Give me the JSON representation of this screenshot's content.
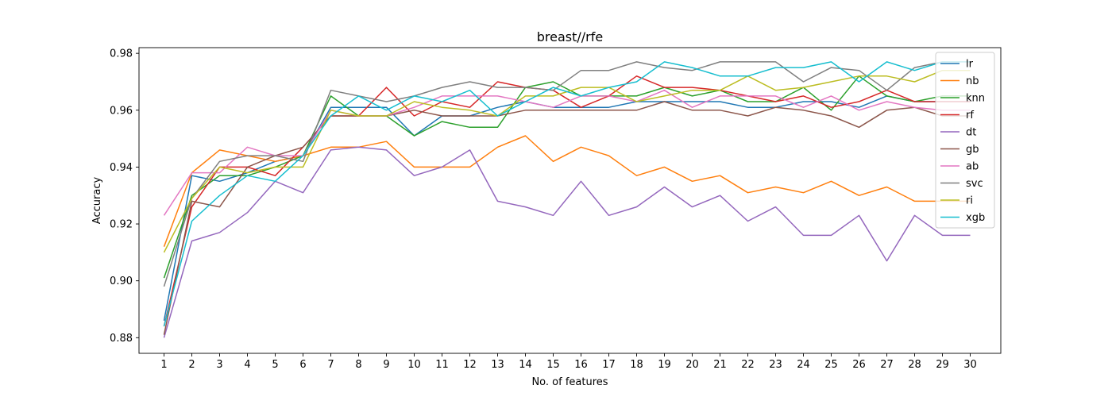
{
  "chart_data": {
    "type": "line",
    "title": "breast//rfe",
    "xlabel": "No. of features",
    "ylabel": "Accuracy",
    "xlim": [
      0.1,
      31.1
    ],
    "ylim": [
      0.8745,
      0.982
    ],
    "x": [
      1,
      2,
      3,
      4,
      5,
      6,
      7,
      8,
      9,
      10,
      11,
      12,
      13,
      14,
      15,
      16,
      17,
      18,
      19,
      20,
      21,
      22,
      23,
      24,
      25,
      26,
      27,
      28,
      29,
      30
    ],
    "xticks": [
      1,
      2,
      3,
      4,
      5,
      6,
      7,
      8,
      9,
      10,
      11,
      12,
      13,
      14,
      15,
      16,
      17,
      18,
      19,
      20,
      21,
      22,
      23,
      24,
      25,
      26,
      27,
      28,
      29,
      30
    ],
    "yticks": [
      0.88,
      0.9,
      0.92,
      0.94,
      0.96,
      0.98
    ],
    "ytick_labels": [
      "0.88",
      "0.90",
      "0.92",
      "0.94",
      "0.96",
      "0.98"
    ],
    "legend_position": "top-right",
    "grid": false,
    "series": [
      {
        "name": "lr",
        "color": "#1f77b4",
        "values": [
          0.886,
          0.937,
          0.935,
          0.938,
          0.942,
          0.944,
          0.961,
          0.961,
          0.961,
          0.951,
          0.958,
          0.958,
          0.961,
          0.963,
          0.961,
          0.961,
          0.961,
          0.963,
          0.963,
          0.963,
          0.963,
          0.961,
          0.961,
          0.963,
          0.963,
          0.961,
          0.965,
          0.963,
          0.963,
          0.963
        ]
      },
      {
        "name": "nb",
        "color": "#ff7f0e",
        "values": [
          0.912,
          0.938,
          0.946,
          0.944,
          0.942,
          0.944,
          0.947,
          0.947,
          0.949,
          0.94,
          0.94,
          0.94,
          0.947,
          0.951,
          0.942,
          0.947,
          0.944,
          0.937,
          0.94,
          0.935,
          0.937,
          0.931,
          0.933,
          0.931,
          0.935,
          0.93,
          0.933,
          0.928,
          0.928,
          0.928
        ]
      },
      {
        "name": "knn",
        "color": "#2ca02c",
        "values": [
          0.901,
          0.93,
          0.937,
          0.937,
          0.94,
          0.944,
          0.965,
          0.958,
          0.958,
          0.951,
          0.956,
          0.954,
          0.954,
          0.968,
          0.97,
          0.965,
          0.965,
          0.965,
          0.968,
          0.965,
          0.967,
          0.963,
          0.963,
          0.968,
          0.96,
          0.972,
          0.965,
          0.963,
          0.965,
          0.965
        ]
      },
      {
        "name": "rf",
        "color": "#d62728",
        "values": [
          0.884,
          0.926,
          0.94,
          0.94,
          0.937,
          0.947,
          0.958,
          0.958,
          0.968,
          0.958,
          0.963,
          0.961,
          0.97,
          0.968,
          0.967,
          0.961,
          0.965,
          0.972,
          0.968,
          0.968,
          0.967,
          0.965,
          0.963,
          0.965,
          0.961,
          0.963,
          0.967,
          0.963,
          0.963,
          0.963
        ]
      },
      {
        "name": "dt",
        "color": "#9467bd",
        "values": [
          0.88,
          0.914,
          0.917,
          0.924,
          0.935,
          0.931,
          0.946,
          0.947,
          0.946,
          0.937,
          0.94,
          0.946,
          0.928,
          0.926,
          0.923,
          0.935,
          0.923,
          0.926,
          0.933,
          0.926,
          0.93,
          0.921,
          0.926,
          0.916,
          0.916,
          0.923,
          0.907,
          0.923,
          0.916,
          0.916
        ]
      },
      {
        "name": "gb",
        "color": "#8c564b",
        "values": [
          0.881,
          0.928,
          0.926,
          0.94,
          0.944,
          0.947,
          0.958,
          0.958,
          0.958,
          0.96,
          0.958,
          0.958,
          0.958,
          0.96,
          0.96,
          0.96,
          0.96,
          0.96,
          0.963,
          0.96,
          0.96,
          0.958,
          0.961,
          0.96,
          0.958,
          0.954,
          0.96,
          0.961,
          0.958,
          0.958
        ]
      },
      {
        "name": "ab",
        "color": "#e377c2",
        "values": [
          0.923,
          0.938,
          0.938,
          0.947,
          0.944,
          0.944,
          0.96,
          0.958,
          0.958,
          0.961,
          0.965,
          0.965,
          0.965,
          0.963,
          0.961,
          0.965,
          0.965,
          0.963,
          0.967,
          0.961,
          0.965,
          0.965,
          0.965,
          0.961,
          0.965,
          0.96,
          0.963,
          0.961,
          0.96,
          0.96
        ]
      },
      {
        "name": "svc",
        "color": "#7f7f7f",
        "values": [
          0.898,
          0.929,
          0.942,
          0.944,
          0.944,
          0.942,
          0.967,
          0.965,
          0.963,
          0.965,
          0.968,
          0.97,
          0.968,
          0.968,
          0.967,
          0.974,
          0.974,
          0.977,
          0.975,
          0.974,
          0.977,
          0.977,
          0.977,
          0.97,
          0.975,
          0.974,
          0.967,
          0.975,
          0.977,
          0.977
        ]
      },
      {
        "name": "ri",
        "color": "#bcbd22",
        "values": [
          0.91,
          0.929,
          0.94,
          0.938,
          0.94,
          0.94,
          0.96,
          0.958,
          0.958,
          0.963,
          0.961,
          0.96,
          0.958,
          0.965,
          0.965,
          0.968,
          0.968,
          0.963,
          0.965,
          0.967,
          0.967,
          0.972,
          0.967,
          0.968,
          0.97,
          0.972,
          0.972,
          0.97,
          0.974,
          0.974
        ]
      },
      {
        "name": "xgb",
        "color": "#17becf",
        "values": [
          0.884,
          0.921,
          0.93,
          0.937,
          0.935,
          0.944,
          0.958,
          0.965,
          0.96,
          0.965,
          0.963,
          0.967,
          0.958,
          0.963,
          0.968,
          0.965,
          0.968,
          0.97,
          0.977,
          0.975,
          0.972,
          0.972,
          0.975,
          0.975,
          0.977,
          0.97,
          0.977,
          0.974,
          0.977,
          0.977
        ]
      }
    ]
  }
}
